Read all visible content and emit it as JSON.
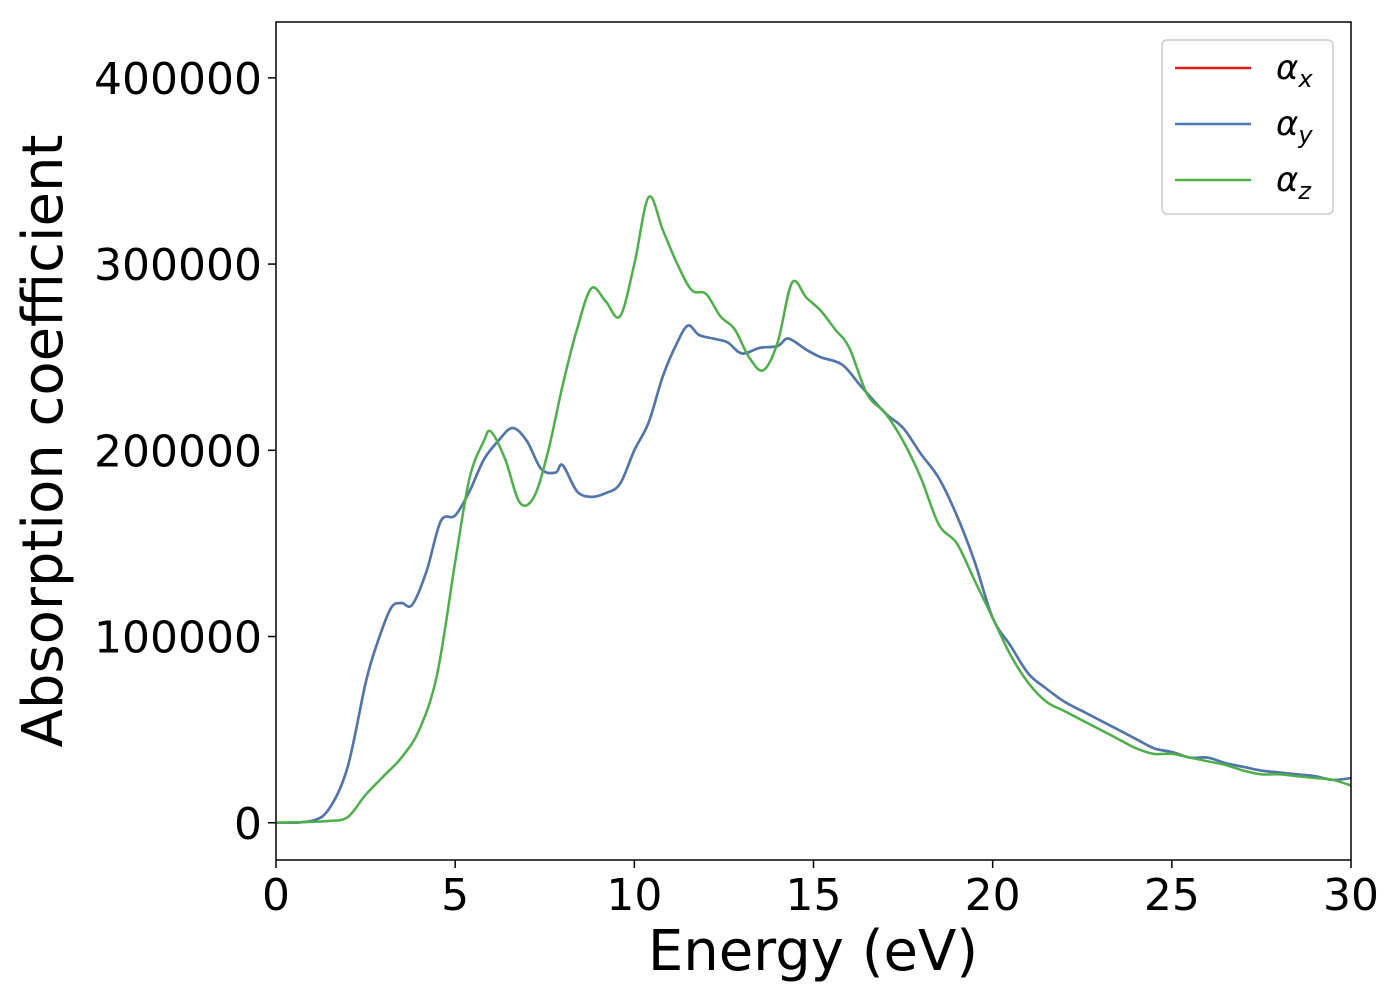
{
  "chart_data": {
    "type": "line",
    "title": "",
    "xlabel": "Energy (eV)",
    "ylabel": "Absorption coefficient",
    "xlim": [
      0,
      30
    ],
    "ylim": [
      -20000,
      430000
    ],
    "xticks": [
      0,
      5,
      10,
      15,
      20,
      25,
      30
    ],
    "yticks": [
      0,
      100000,
      200000,
      300000,
      400000
    ],
    "grid": false,
    "legend_position": "top-right",
    "series": [
      {
        "name": "αx",
        "symbol": "α",
        "subscript": "x",
        "color": "#e41a1c",
        "x": [
          0,
          1,
          1.5,
          2,
          2.5,
          2.8,
          3.2,
          3.5,
          3.8,
          4.2,
          4.6,
          5.0,
          5.4,
          5.8,
          6.2,
          6.6,
          7.0,
          7.4,
          7.8,
          8.0,
          8.4,
          8.8,
          9.2,
          9.6,
          10.0,
          10.4,
          10.8,
          11.2,
          11.5,
          11.8,
          12.2,
          12.6,
          13.0,
          13.5,
          14.0,
          14.3,
          14.8,
          15.2,
          15.8,
          16.3,
          17.0,
          17.5,
          18.0,
          18.5,
          19.0,
          19.5,
          20.0,
          20.5,
          21.0,
          21.5,
          22.0,
          22.5,
          23.0,
          23.5,
          24.0,
          24.5,
          25.0,
          25.5,
          26.0,
          26.5,
          27.0,
          27.5,
          28.0,
          28.5,
          29.0,
          29.5,
          30.0
        ],
        "y": [
          0,
          1000,
          8000,
          30000,
          75000,
          95000,
          115000,
          118000,
          117000,
          135000,
          162000,
          165000,
          178000,
          195000,
          205000,
          212000,
          205000,
          190000,
          188000,
          192000,
          178000,
          175000,
          177000,
          182000,
          200000,
          215000,
          240000,
          258000,
          267000,
          262000,
          260000,
          258000,
          252000,
          255000,
          256000,
          260000,
          254000,
          250000,
          246000,
          235000,
          220000,
          212000,
          198000,
          185000,
          165000,
          140000,
          110000,
          95000,
          80000,
          72000,
          65000,
          60000,
          55000,
          50000,
          45000,
          40000,
          38000,
          35000,
          35000,
          32000,
          30000,
          28000,
          27000,
          26000,
          25000,
          23000,
          24000
        ]
      },
      {
        "name": "αy",
        "symbol": "α",
        "subscript": "y",
        "color": "#4a79b0",
        "x": [
          0,
          1,
          1.5,
          2,
          2.5,
          2.8,
          3.2,
          3.5,
          3.8,
          4.2,
          4.6,
          5.0,
          5.4,
          5.8,
          6.2,
          6.6,
          7.0,
          7.4,
          7.8,
          8.0,
          8.4,
          8.8,
          9.2,
          9.6,
          10.0,
          10.4,
          10.8,
          11.2,
          11.5,
          11.8,
          12.2,
          12.6,
          13.0,
          13.5,
          14.0,
          14.3,
          14.8,
          15.2,
          15.8,
          16.3,
          17.0,
          17.5,
          18.0,
          18.5,
          19.0,
          19.5,
          20.0,
          20.5,
          21.0,
          21.5,
          22.0,
          22.5,
          23.0,
          23.5,
          24.0,
          24.5,
          25.0,
          25.5,
          26.0,
          26.5,
          27.0,
          27.5,
          28.0,
          28.5,
          29.0,
          29.5,
          30.0
        ],
        "y": [
          0,
          1000,
          8000,
          30000,
          75000,
          95000,
          115000,
          118000,
          117000,
          135000,
          162000,
          165000,
          178000,
          195000,
          205000,
          212000,
          205000,
          190000,
          188000,
          192000,
          178000,
          175000,
          177000,
          182000,
          200000,
          215000,
          240000,
          258000,
          267000,
          262000,
          260000,
          258000,
          252000,
          255000,
          256000,
          260000,
          254000,
          250000,
          246000,
          235000,
          220000,
          212000,
          198000,
          185000,
          165000,
          140000,
          110000,
          95000,
          80000,
          72000,
          65000,
          60000,
          55000,
          50000,
          45000,
          40000,
          38000,
          35000,
          35000,
          32000,
          30000,
          28000,
          27000,
          26000,
          25000,
          23000,
          24000
        ]
      },
      {
        "name": "αz",
        "symbol": "α",
        "subscript": "z",
        "color": "#4daf4a",
        "x": [
          0,
          1,
          1.5,
          2.0,
          2.5,
          3.0,
          3.5,
          4.0,
          4.5,
          5.0,
          5.4,
          5.8,
          6.0,
          6.4,
          6.8,
          7.2,
          7.6,
          8.0,
          8.4,
          8.8,
          9.2,
          9.6,
          10.0,
          10.4,
          10.8,
          11.2,
          11.6,
          12.0,
          12.4,
          12.8,
          13.2,
          13.6,
          14.0,
          14.4,
          14.8,
          15.2,
          15.6,
          16.0,
          16.5,
          17.0,
          17.5,
          18.0,
          18.5,
          19.0,
          19.5,
          20.0,
          20.5,
          21.0,
          21.5,
          22.0,
          22.5,
          23.0,
          23.5,
          24.0,
          24.5,
          25.0,
          25.5,
          26.0,
          26.5,
          27.0,
          27.5,
          28.0,
          28.5,
          29.0,
          29.5,
          30.0
        ],
        "y": [
          0,
          500,
          1000,
          3000,
          15000,
          25000,
          35000,
          50000,
          80000,
          140000,
          185000,
          205000,
          210000,
          195000,
          172000,
          175000,
          200000,
          235000,
          265000,
          287000,
          280000,
          272000,
          300000,
          336000,
          318000,
          300000,
          286000,
          284000,
          272000,
          265000,
          250000,
          243000,
          258000,
          290000,
          282000,
          275000,
          265000,
          255000,
          230000,
          220000,
          205000,
          185000,
          160000,
          150000,
          130000,
          110000,
          90000,
          75000,
          65000,
          60000,
          55000,
          50000,
          45000,
          40000,
          37000,
          37000,
          35000,
          33000,
          31000,
          28000,
          26000,
          26000,
          25000,
          24000,
          23000,
          20000
        ]
      }
    ]
  }
}
